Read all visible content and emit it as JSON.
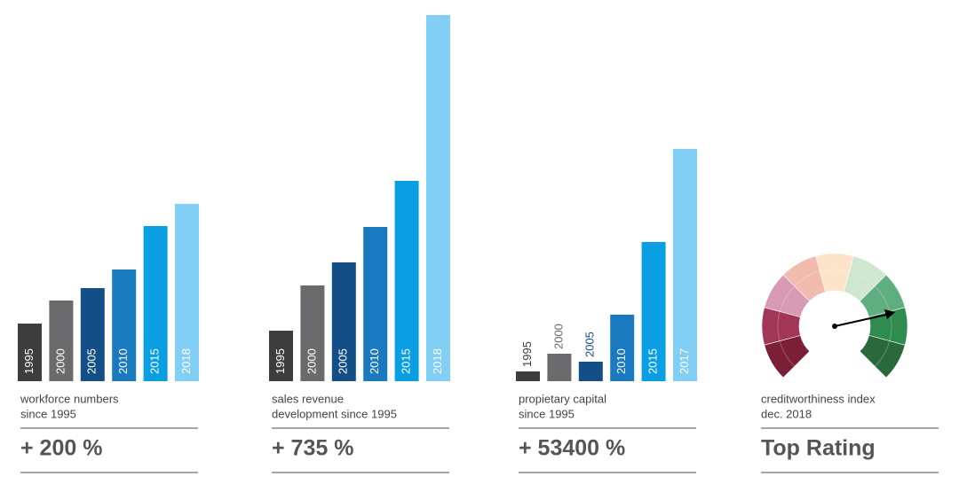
{
  "chart_data": [
    {
      "type": "bar",
      "categories": [
        "1995",
        "2000",
        "2005",
        "2010",
        "2015",
        "2018"
      ],
      "values": [
        65,
        91,
        105,
        126,
        175,
        200
      ],
      "colors": [
        "#3d3d3d",
        "#6b6a6c",
        "#134f86",
        "#1a7ac0",
        "#0a9fe3",
        "#82cff5"
      ],
      "ylim": [
        0,
        415
      ],
      "caption": [
        "workforce numbers",
        "since 1995"
      ],
      "headline": "+ 200 %"
    },
    {
      "type": "bar",
      "categories": [
        "1995",
        "2000",
        "2005",
        "2010",
        "2015",
        "2018"
      ],
      "values": [
        57,
        108,
        134,
        174,
        226,
        413
      ],
      "colors": [
        "#3d3d3d",
        "#6b6a6c",
        "#134f86",
        "#1a7ac0",
        "#0a9fe3",
        "#82cff5"
      ],
      "ylim": [
        0,
        415
      ],
      "caption": [
        "sales revenue",
        "development since 1995"
      ],
      "headline": "+ 735 %"
    },
    {
      "type": "bar",
      "categories": [
        "1995",
        "2000",
        "2005",
        "2010",
        "2015",
        "2017"
      ],
      "values": [
        11,
        31,
        22,
        75,
        157,
        262
      ],
      "colors": [
        "#3d3d3d",
        "#6b6a6c",
        "#134f86",
        "#1a7ac0",
        "#0a9fe3",
        "#82cff5"
      ],
      "ylim": [
        0,
        415
      ],
      "caption": [
        "propietary capital",
        "since 1995"
      ],
      "headline": "+ 53400 %"
    }
  ],
  "gauge": {
    "caption": [
      "creditworthiness index",
      "dec. 2018"
    ],
    "headline": "Top Rating"
  }
}
